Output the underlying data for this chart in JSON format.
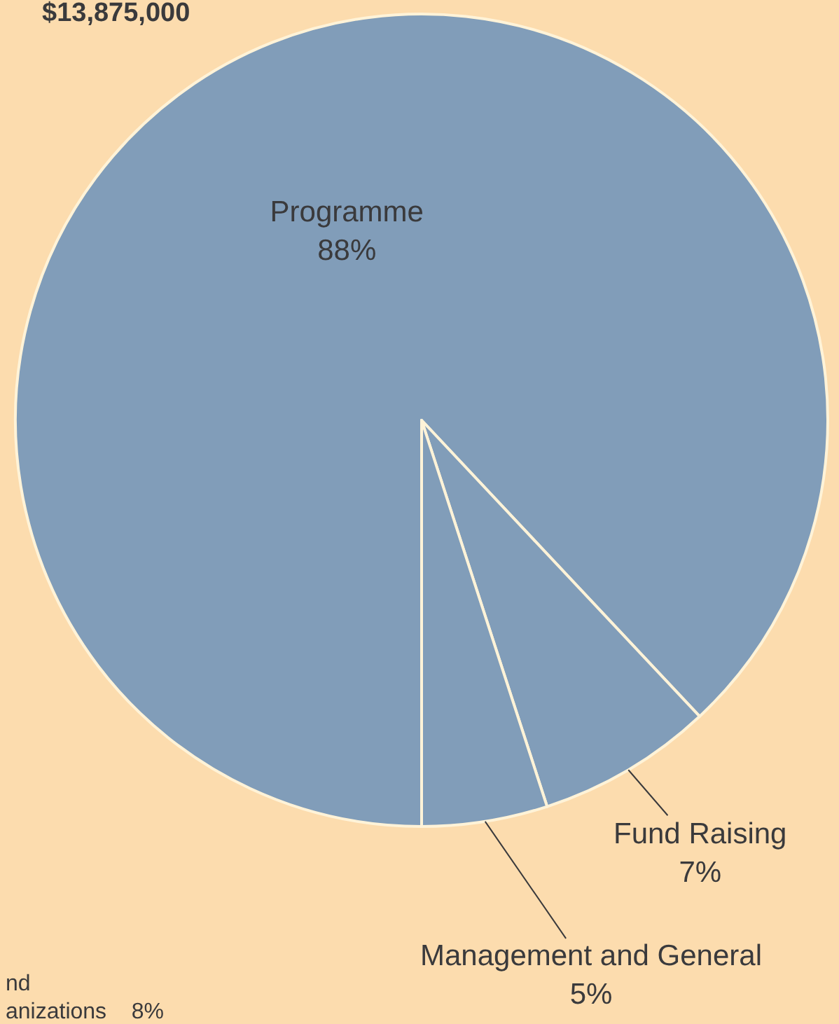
{
  "chart_data": {
    "type": "pie",
    "title": "$13,875,000",
    "categories": [
      "Programme",
      "Fund Raising",
      "Management and General"
    ],
    "values": [
      88,
      7,
      5
    ],
    "value_labels": [
      "88%",
      "7%",
      "5%"
    ],
    "colors": [
      "#819db9",
      "#819db9",
      "#819db9"
    ],
    "annotations": [
      "nd",
      "anizations    8%"
    ]
  }
}
